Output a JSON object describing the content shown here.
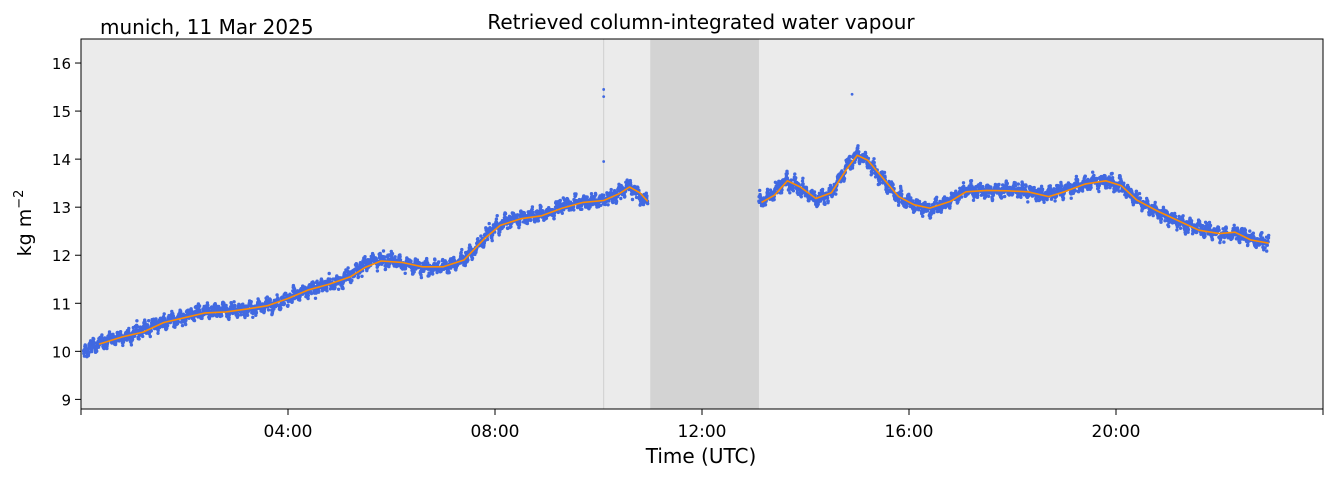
{
  "chart_data": {
    "type": "scatter",
    "title": "Retrieved column-integrated water vapour",
    "location_date": "munich, 11 Mar 2025",
    "xlabel": "Time (UTC)",
    "ylabel": "kg m",
    "ylabel_superscript": "−2",
    "xlim": [
      0,
      24
    ],
    "ylim": [
      8.8,
      16.5
    ],
    "x_ticks": [
      {
        "value": 4,
        "label": "04:00"
      },
      {
        "value": 8,
        "label": "08:00"
      },
      {
        "value": 12,
        "label": "12:00"
      },
      {
        "value": 16,
        "label": "16:00"
      },
      {
        "value": 20,
        "label": "20:00"
      }
    ],
    "y_ticks": [
      9,
      10,
      11,
      12,
      13,
      14,
      15,
      16
    ],
    "colors": {
      "plot_background": "#ebebeb",
      "data_points": "#4169e1",
      "smoothed_line": "#ff8c00",
      "gap_shading": "#d3d3d3",
      "vertical_marker": "#d0d0d0"
    },
    "gap_interval": [
      11.0,
      13.1
    ],
    "vertical_marker_at": 10.1,
    "series": [
      {
        "points": [
          [
            0.05,
            10.0
          ],
          [
            0.3,
            10.15
          ],
          [
            0.6,
            10.25
          ],
          [
            1.0,
            10.35
          ],
          [
            1.4,
            10.55
          ],
          [
            1.8,
            10.65
          ],
          [
            2.2,
            10.8
          ],
          [
            2.6,
            10.85
          ],
          [
            3.0,
            10.85
          ],
          [
            3.4,
            10.9
          ],
          [
            3.8,
            11.0
          ],
          [
            4.2,
            11.2
          ],
          [
            4.6,
            11.35
          ],
          [
            5.0,
            11.45
          ],
          [
            5.3,
            11.65
          ],
          [
            5.6,
            11.9
          ],
          [
            6.0,
            11.9
          ],
          [
            6.3,
            11.8
          ],
          [
            6.6,
            11.75
          ],
          [
            7.0,
            11.75
          ],
          [
            7.3,
            11.85
          ],
          [
            7.6,
            12.1
          ],
          [
            7.9,
            12.5
          ],
          [
            8.2,
            12.7
          ],
          [
            8.6,
            12.8
          ],
          [
            9.0,
            12.85
          ],
          [
            9.3,
            13.05
          ],
          [
            9.7,
            13.1
          ],
          [
            10.1,
            13.15
          ],
          [
            10.4,
            13.3
          ],
          [
            10.6,
            13.45
          ],
          [
            10.8,
            13.25
          ],
          [
            10.95,
            13.1
          ],
          [
            13.1,
            13.1
          ],
          [
            13.3,
            13.2
          ],
          [
            13.6,
            13.55
          ],
          [
            13.9,
            13.4
          ],
          [
            14.2,
            13.15
          ],
          [
            14.5,
            13.3
          ],
          [
            14.8,
            13.85
          ],
          [
            15.0,
            14.1
          ],
          [
            15.2,
            13.95
          ],
          [
            15.5,
            13.55
          ],
          [
            15.8,
            13.2
          ],
          [
            16.1,
            13.05
          ],
          [
            16.4,
            12.95
          ],
          [
            16.8,
            13.15
          ],
          [
            17.1,
            13.35
          ],
          [
            17.5,
            13.35
          ],
          [
            17.8,
            13.35
          ],
          [
            18.2,
            13.35
          ],
          [
            18.6,
            13.25
          ],
          [
            19.0,
            13.35
          ],
          [
            19.4,
            13.5
          ],
          [
            19.8,
            13.55
          ],
          [
            20.1,
            13.45
          ],
          [
            20.4,
            13.15
          ],
          [
            20.8,
            12.9
          ],
          [
            21.2,
            12.7
          ],
          [
            21.6,
            12.55
          ],
          [
            22.0,
            12.45
          ],
          [
            22.4,
            12.45
          ],
          [
            22.7,
            12.3
          ],
          [
            22.95,
            12.3
          ]
        ],
        "smoothed": [
          [
            0.35,
            10.15
          ],
          [
            0.8,
            10.3
          ],
          [
            1.2,
            10.4
          ],
          [
            1.6,
            10.6
          ],
          [
            2.0,
            10.7
          ],
          [
            2.4,
            10.8
          ],
          [
            2.8,
            10.82
          ],
          [
            3.2,
            10.88
          ],
          [
            3.6,
            10.95
          ],
          [
            4.0,
            11.1
          ],
          [
            4.4,
            11.28
          ],
          [
            4.8,
            11.4
          ],
          [
            5.2,
            11.55
          ],
          [
            5.5,
            11.75
          ],
          [
            5.8,
            11.88
          ],
          [
            6.2,
            11.85
          ],
          [
            6.6,
            11.76
          ],
          [
            7.0,
            11.76
          ],
          [
            7.4,
            11.9
          ],
          [
            7.8,
            12.35
          ],
          [
            8.1,
            12.62
          ],
          [
            8.5,
            12.76
          ],
          [
            8.9,
            12.82
          ],
          [
            9.3,
            12.98
          ],
          [
            9.7,
            13.1
          ],
          [
            10.1,
            13.14
          ],
          [
            10.4,
            13.28
          ],
          [
            10.6,
            13.42
          ],
          [
            10.8,
            13.3
          ],
          [
            10.95,
            13.12
          ],
          [
            13.15,
            13.1
          ],
          [
            13.4,
            13.25
          ],
          [
            13.65,
            13.55
          ],
          [
            13.9,
            13.42
          ],
          [
            14.2,
            13.18
          ],
          [
            14.5,
            13.3
          ],
          [
            14.8,
            13.8
          ],
          [
            15.0,
            14.08
          ],
          [
            15.2,
            13.98
          ],
          [
            15.5,
            13.6
          ],
          [
            15.8,
            13.22
          ],
          [
            16.1,
            13.05
          ],
          [
            16.4,
            12.98
          ],
          [
            16.8,
            13.12
          ],
          [
            17.1,
            13.32
          ],
          [
            17.5,
            13.35
          ],
          [
            17.9,
            13.34
          ],
          [
            18.3,
            13.32
          ],
          [
            18.7,
            13.22
          ],
          [
            19.0,
            13.32
          ],
          [
            19.4,
            13.48
          ],
          [
            19.8,
            13.55
          ],
          [
            20.1,
            13.45
          ],
          [
            20.4,
            13.15
          ],
          [
            20.8,
            12.92
          ],
          [
            21.2,
            12.72
          ],
          [
            21.6,
            12.52
          ],
          [
            22.0,
            12.45
          ],
          [
            22.3,
            12.48
          ],
          [
            22.6,
            12.32
          ],
          [
            22.95,
            12.25
          ]
        ]
      }
    ],
    "outliers": [
      [
        10.1,
        15.45
      ],
      [
        10.1,
        15.3
      ],
      [
        10.1,
        13.95
      ],
      [
        14.9,
        15.35
      ]
    ]
  }
}
